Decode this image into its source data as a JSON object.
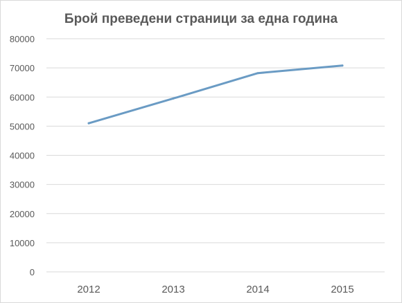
{
  "chart_data": {
    "type": "line",
    "title": "Брой преведени страници за една година",
    "xlabel": "",
    "ylabel": "",
    "categories": [
      "2012",
      "2013",
      "2014",
      "2015"
    ],
    "series": [
      {
        "values": [
          51000,
          59500,
          68200,
          70800
        ],
        "color": "#6a9bc4"
      }
    ],
    "ylim": [
      0,
      80000
    ],
    "yticks": [
      "0",
      "10000",
      "20000",
      "30000",
      "40000",
      "50000",
      "60000",
      "70000",
      "80000"
    ],
    "grid": true,
    "gridColor": "#d9d9d9",
    "legend": "none"
  }
}
